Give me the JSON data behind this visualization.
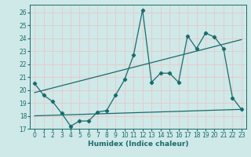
{
  "xlabel": "Humidex (Indice chaleur)",
  "background_color": "#cfe8e8",
  "grid_color": "#b8d8d8",
  "line_color": "#1a6b6b",
  "xlim": [
    -0.5,
    23.5
  ],
  "ylim": [
    17,
    26.6
  ],
  "yticks": [
    17,
    18,
    19,
    20,
    21,
    22,
    23,
    24,
    25,
    26
  ],
  "xticks": [
    0,
    1,
    2,
    3,
    4,
    5,
    6,
    7,
    8,
    9,
    10,
    11,
    12,
    13,
    14,
    15,
    16,
    17,
    18,
    19,
    20,
    21,
    22,
    23
  ],
  "main_series": {
    "x": [
      0,
      1,
      2,
      3,
      4,
      5,
      6,
      7,
      8,
      9,
      10,
      11,
      12,
      13,
      14,
      15,
      16,
      17,
      18,
      19,
      20,
      21,
      22,
      23
    ],
    "y": [
      20.5,
      19.6,
      19.1,
      18.2,
      17.2,
      17.6,
      17.6,
      18.3,
      18.4,
      19.6,
      20.8,
      22.7,
      26.2,
      20.6,
      21.3,
      21.3,
      20.6,
      24.2,
      23.2,
      24.4,
      24.1,
      23.2,
      19.4,
      18.5
    ]
  },
  "trend_line": {
    "x": [
      0,
      23
    ],
    "y": [
      19.8,
      23.9
    ]
  },
  "flat_line": {
    "x": [
      0,
      23
    ],
    "y": [
      18.0,
      18.5
    ]
  }
}
